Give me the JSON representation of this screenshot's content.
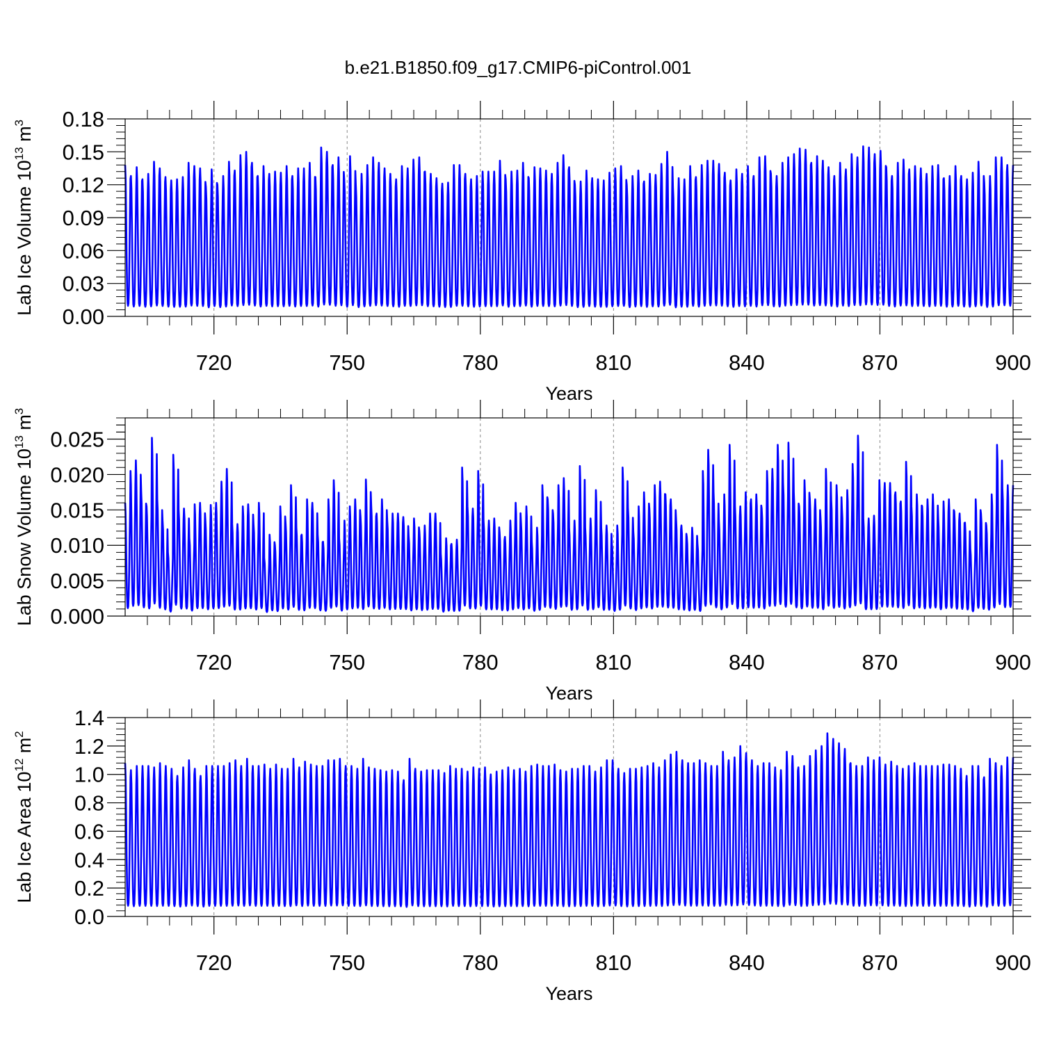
{
  "title": "b.e21.B1850.f09_g17.CMIP6-piControl.001",
  "line_color": "#0000ff",
  "chart_data": [
    {
      "type": "line",
      "xlabel": "Years",
      "ylabel": "Lab Ice Volume 10",
      "ylabel_sup": "13",
      "ylabel_unit": " m",
      "ylabel_unit_sup": "3",
      "xlim": [
        700,
        900
      ],
      "ylim": [
        0,
        0.18
      ],
      "xticks": [
        720,
        750,
        780,
        810,
        840,
        870,
        900
      ],
      "xtick_labels": [
        "720",
        "750",
        "780",
        "810",
        "840",
        "870",
        "900"
      ],
      "yticks": [
        0,
        0.03,
        0.06,
        0.09,
        0.12,
        0.15,
        0.18
      ],
      "ytick_labels": [
        "0.00",
        "0.03",
        "0.06",
        "0.09",
        "0.12",
        "0.15",
        "0.18"
      ],
      "grid": "vertical dashed at major x ticks",
      "series": [
        {
          "frequency": "monthly, seasonal cycle",
          "x_start": 700,
          "x_end": 900,
          "annual_max": [
            0.138,
            0.128,
            0.136,
            0.125,
            0.13,
            0.141,
            0.135,
            0.127,
            0.124,
            0.125,
            0.127,
            0.14,
            0.137,
            0.135,
            0.118,
            0.134,
            0.12,
            0.128,
            0.141,
            0.133,
            0.147,
            0.15,
            0.14,
            0.128,
            0.137,
            0.13,
            0.132,
            0.131,
            0.137,
            0.128,
            0.135,
            0.135,
            0.14,
            0.127,
            0.154,
            0.15,
            0.138,
            0.145,
            0.125,
            0.146,
            0.12,
            0.13,
            0.138,
            0.145,
            0.14,
            0.135,
            0.13,
            0.125,
            0.137,
            0.135,
            0.143,
            0.145,
            0.132,
            0.13,
            0.126,
            0.121,
            0.122,
            0.138,
            0.138,
            0.13,
            0.125,
            0.128,
            0.132,
            0.132,
            0.132,
            0.142,
            0.125,
            0.132,
            0.133,
            0.14,
            0.126,
            0.136,
            0.135,
            0.133,
            0.13,
            0.14,
            0.147,
            0.136,
            0.12,
            0.123,
            0.133,
            0.126,
            0.125,
            0.124,
            0.131,
            0.135,
            0.137,
            0.12,
            0.128,
            0.133,
            0.123,
            0.13,
            0.129,
            0.139,
            0.15,
            0.118,
            0.126,
            0.125,
            0.137,
            0.127,
            0.138,
            0.142,
            0.142,
            0.139,
            0.131,
            0.124,
            0.134,
            0.13,
            0.137,
            0.128,
            0.145,
            0.146,
            0.13,
            0.128,
            0.14,
            0.145,
            0.148,
            0.153,
            0.152,
            0.14,
            0.146,
            0.142,
            0.136,
            0.128,
            0.14,
            0.134,
            0.148,
            0.145,
            0.155,
            0.154,
            0.148,
            0.151,
            0.136,
            0.128,
            0.14,
            0.143,
            0.134,
            0.137,
            0.135,
            0.13,
            0.137,
            0.138,
            0.126,
            0.128,
            0.137,
            0.128,
            0.125,
            0.131,
            0.141,
            0.122,
            0.128,
            0.145,
            0.145,
            0.138
          ]
        }
      ]
    },
    {
      "type": "line",
      "xlabel": "Years",
      "ylabel": "Lab Snow Volume 10",
      "ylabel_sup": "13",
      "ylabel_unit": " m",
      "ylabel_unit_sup": "3",
      "xlim": [
        700,
        900
      ],
      "ylim": [
        0,
        0.028
      ],
      "xticks": [
        720,
        750,
        780,
        810,
        840,
        870,
        900
      ],
      "xtick_labels": [
        "720",
        "750",
        "780",
        "810",
        "840",
        "870",
        "900"
      ],
      "yticks": [
        0,
        0.005,
        0.01,
        0.015,
        0.02,
        0.025
      ],
      "ytick_labels": [
        "0.000",
        "0.005",
        "0.010",
        "0.015",
        "0.020",
        "0.025"
      ],
      "grid": "vertical dashed at major x ticks",
      "series": [
        {
          "frequency": "monthly, seasonal cycle",
          "x_start": 700,
          "x_end": 900,
          "annual_max": [
            0.016,
            0.0205,
            0.022,
            0.0175,
            0.0155,
            0.0252,
            0.0165,
            0.0135,
            0.009,
            0.0228,
            0.015,
            0.0152,
            0.011,
            0.0158,
            0.016,
            0.0135,
            0.0157,
            0.016,
            0.019,
            0.0208,
            0.013,
            0.013,
            0.0155,
            0.0158,
            0.013,
            0.016,
            0.0082,
            0.0115,
            0.01,
            0.0155,
            0.013,
            0.0185,
            0.0125,
            0.0115,
            0.0165,
            0.016,
            0.0115,
            0.0105,
            0.0165,
            0.0192,
            0.011,
            0.0135,
            0.0155,
            0.0165,
            0.014,
            0.0193,
            0.0155,
            0.0145,
            0.0165,
            0.0135,
            0.0145,
            0.0145,
            0.014,
            0.0113,
            0.0138,
            0.012,
            0.0128,
            0.0145,
            0.0145,
            0.0088,
            0.011,
            0.0102,
            0.0108,
            0.021,
            0.0155,
            0.0152,
            0.0205,
            0.0135,
            0.0135,
            0.0138,
            0.0118,
            0.0112,
            0.0135,
            0.016,
            0.0132,
            0.0155,
            0.0105,
            0.0125,
            0.0185,
            0.0165,
            0.0145,
            0.0185,
            0.0195,
            0.0125,
            0.0135,
            0.0212,
            0.0125,
            0.0138,
            0.0178,
            0.0125,
            0.0128,
            0.0102,
            0.0128,
            0.021,
            0.0153,
            0.012,
            0.0155,
            0.0175,
            0.0152,
            0.0185,
            0.019,
            0.0172,
            0.0165,
            0.0135,
            0.0128,
            0.0112,
            0.0125,
            0.0102,
            0.0205,
            0.0235,
            0.0175,
            0.0135,
            0.0172,
            0.0242,
            0.0155,
            0.0155,
            0.0175,
            0.0165,
            0.0172,
            0.0152,
            0.0205,
            0.0208,
            0.0242,
            0.0188,
            0.0245,
            0.0175,
            0.0155,
            0.0192,
            0.0165,
            0.0165,
            0.0138,
            0.0208,
            0.0165,
            0.0185,
            0.0152,
            0.0178,
            0.0215,
            0.0255,
            0.0138,
            0.0138,
            0.0142,
            0.0192,
            0.0188,
            0.0188,
            0.0175,
            0.0162,
            0.0218,
            0.0155,
            0.0172,
            0.0155,
            0.0165,
            0.0172,
            0.0138,
            0.0162,
            0.0165,
            0.0148,
            0.0145,
            0.0132,
            0.0095,
            0.0165,
            0.0145,
            0.0128,
            0.0172,
            0.0242,
            0.018,
            0.0185
          ]
        }
      ]
    },
    {
      "type": "line",
      "xlabel": "Years",
      "ylabel": "Lab Ice Area 10",
      "ylabel_sup": "12",
      "ylabel_unit": " m",
      "ylabel_unit_sup": "2",
      "xlim": [
        700,
        900
      ],
      "ylim": [
        0,
        1.4
      ],
      "xticks": [
        720,
        750,
        780,
        810,
        840,
        870,
        900
      ],
      "xtick_labels": [
        "720",
        "750",
        "780",
        "810",
        "840",
        "870",
        "900"
      ],
      "yticks": [
        0,
        0.2,
        0.4,
        0.6,
        0.8,
        1.0,
        1.2,
        1.4
      ],
      "ytick_labels": [
        "0.0",
        "0.2",
        "0.4",
        "0.6",
        "0.8",
        "1.0",
        "1.2",
        "1.4"
      ],
      "grid": "vertical dashed at major x ticks",
      "series": [
        {
          "frequency": "monthly, seasonal cycle",
          "x_start": 700,
          "x_end": 900,
          "annual_max": [
            1.08,
            1.03,
            1.06,
            1.06,
            1.06,
            1.05,
            1.08,
            1.06,
            1.04,
            0.99,
            1.05,
            1.1,
            1.04,
            0.99,
            1.06,
            1.06,
            1.06,
            1.06,
            1.08,
            1.1,
            1.06,
            1.11,
            1.06,
            1.06,
            1.07,
            1.04,
            1.07,
            1.04,
            1.04,
            1.11,
            1.05,
            1.09,
            1.07,
            1.06,
            1.06,
            1.1,
            1.1,
            1.11,
            1.06,
            1.06,
            1.04,
            1.11,
            1.05,
            1.04,
            1.03,
            1.02,
            1.03,
            1.02,
            0.96,
            1.11,
            1.04,
            1.02,
            1.03,
            1.03,
            1.03,
            1.01,
            1.06,
            1.04,
            1.04,
            1.02,
            1.05,
            1.04,
            1.05,
            1.0,
            1.02,
            1.03,
            1.05,
            1.03,
            1.04,
            1.02,
            1.06,
            1.07,
            1.06,
            1.06,
            1.07,
            1.03,
            1.02,
            1.04,
            1.04,
            1.06,
            1.06,
            1.02,
            1.05,
            1.1,
            1.1,
            1.04,
            1.01,
            1.04,
            1.04,
            1.05,
            1.06,
            1.08,
            1.05,
            1.1,
            1.14,
            1.16,
            1.1,
            1.08,
            1.08,
            1.1,
            1.08,
            1.06,
            1.06,
            1.16,
            1.1,
            1.12,
            1.2,
            1.15,
            1.1,
            1.06,
            1.08,
            1.08,
            1.05,
            1.03,
            1.16,
            1.13,
            1.05,
            1.06,
            1.13,
            1.17,
            1.2,
            1.29,
            1.25,
            1.22,
            1.18,
            1.08,
            1.06,
            1.06,
            1.12,
            1.1,
            1.12,
            1.07,
            1.09,
            1.06,
            1.04,
            1.06,
            1.08,
            1.06,
            1.06,
            1.06,
            1.06,
            1.07,
            1.07,
            1.06,
            1.04,
            0.99,
            1.06,
            1.06,
            0.98,
            1.11,
            1.08,
            1.06,
            1.12
          ]
        }
      ]
    }
  ]
}
